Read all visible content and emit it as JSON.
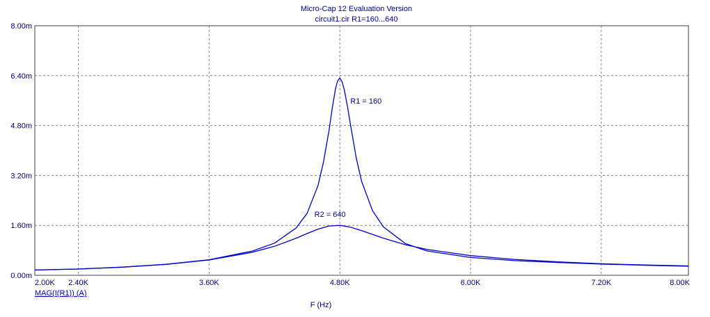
{
  "chart_data": {
    "type": "line",
    "title": "Micro-Cap 12 Evaluation Version",
    "subtitle": "circuit1.cir R1=160...640",
    "xlabel": "F (Hz)",
    "ylabel": "MAG(I(R1)) (A)",
    "xlim": [
      2000,
      8000
    ],
    "ylim": [
      0,
      0.008
    ],
    "x_ticks": [
      2000,
      2400,
      3600,
      4800,
      6000,
      7200,
      8000
    ],
    "x_tick_labels": [
      "2.00K",
      "2.40K",
      "3.60K",
      "4.80K",
      "6.00K",
      "7.20K",
      "8.00K"
    ],
    "y_ticks": [
      0,
      0.0016,
      0.0032,
      0.0048,
      0.0064,
      0.008
    ],
    "y_tick_labels": [
      "0.00m",
      "1.60m",
      "3.20m",
      "4.80m",
      "6.40m",
      "8.00m"
    ],
    "grid": true,
    "line_color": "#0000c8",
    "series": [
      {
        "name": "R1 = 160",
        "x": [
          2000,
          2400,
          2800,
          3200,
          3600,
          4000,
          4200,
          4400,
          4500,
          4600,
          4650,
          4700,
          4730,
          4760,
          4780,
          4800,
          4820,
          4840,
          4870,
          4900,
          4950,
          5000,
          5100,
          5200,
          5400,
          5600,
          6000,
          6400,
          6800,
          7200,
          7600,
          8000
        ],
        "y": [
          0.00017,
          0.0002,
          0.00026,
          0.00035,
          0.0005,
          0.00078,
          0.00103,
          0.00152,
          0.00199,
          0.00288,
          0.00363,
          0.00463,
          0.00534,
          0.00597,
          0.00624,
          0.00632,
          0.00621,
          0.00596,
          0.00541,
          0.00478,
          0.00377,
          0.00301,
          0.00207,
          0.00155,
          0.00102,
          0.00078,
          0.00057,
          0.00047,
          0.00041,
          0.00036,
          0.00032,
          0.00029
        ]
      },
      {
        "name": "R2 = 640",
        "x": [
          2000,
          2400,
          2800,
          3200,
          3600,
          4000,
          4200,
          4400,
          4500,
          4600,
          4700,
          4800,
          4900,
          5000,
          5200,
          5400,
          5600,
          6000,
          6400,
          6800,
          7200,
          7600,
          8000
        ],
        "y": [
          0.00017,
          0.0002,
          0.00026,
          0.00035,
          0.00049,
          0.00074,
          0.00093,
          0.00119,
          0.00134,
          0.00148,
          0.00158,
          0.0016,
          0.00154,
          0.00143,
          0.00119,
          0.00098,
          0.00083,
          0.00063,
          0.00051,
          0.00043,
          0.00037,
          0.00033,
          0.0003
        ]
      }
    ],
    "annotations": [
      {
        "text": "R1 = 160",
        "x": 5040,
        "y": 0.0055
      },
      {
        "text": "R2 = 640",
        "x": 4710,
        "y": 0.00187
      }
    ]
  }
}
